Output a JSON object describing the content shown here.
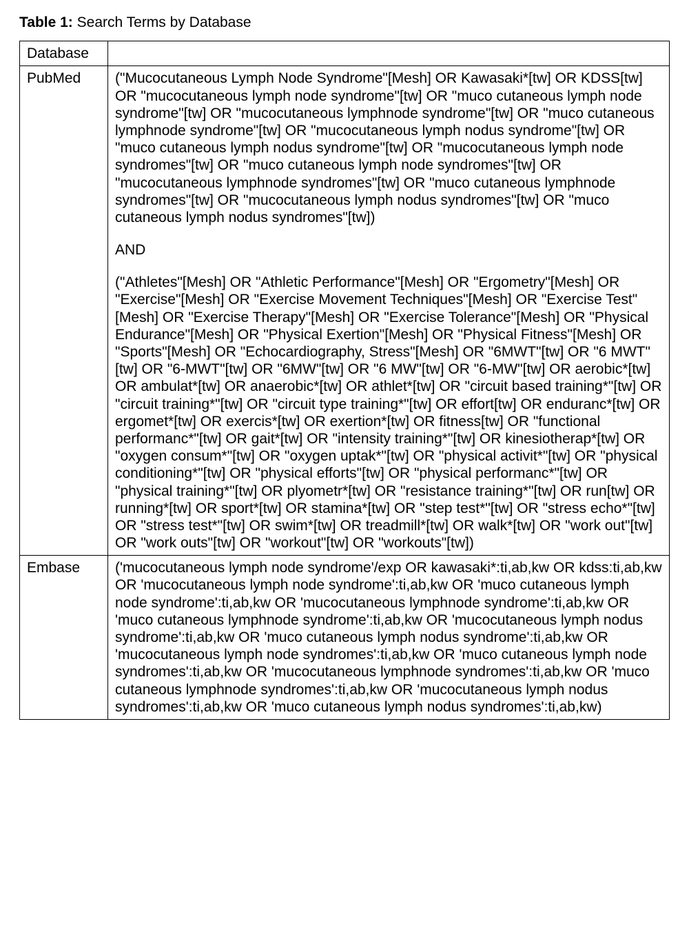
{
  "title": {
    "label": "Table 1:",
    "text": "Search Terms by Database"
  },
  "table": {
    "header": {
      "col1": "Database",
      "col2": ""
    },
    "rows": [
      {
        "database": "PubMed",
        "query_block1": "(\"Mucocutaneous Lymph Node Syndrome\"[Mesh] OR Kawasaki*[tw] OR KDSS[tw] OR \"mucocutaneous lymph node syndrome\"[tw] OR \"muco cutaneous lymph node syndrome\"[tw] OR \"mucocutaneous lymphnode syndrome\"[tw] OR \"muco cutaneous lymphnode syndrome\"[tw] OR \"mucocutaneous lymph nodus syndrome\"[tw] OR \"muco cutaneous lymph nodus syndrome\"[tw] OR \"mucocutaneous lymph node syndromes\"[tw] OR \"muco cutaneous lymph node syndromes\"[tw] OR \"mucocutaneous lymphnode syndromes\"[tw] OR \"muco cutaneous lymphnode syndromes\"[tw] OR \"mucocutaneous lymph nodus syndromes\"[tw] OR \"muco cutaneous lymph nodus syndromes\"[tw])",
        "and_sep": "AND",
        "query_block2": "(\"Athletes\"[Mesh] OR \"Athletic Performance\"[Mesh] OR \"Ergometry\"[Mesh] OR \"Exercise\"[Mesh] OR \"Exercise Movement Techniques\"[Mesh] OR \"Exercise Test\"[Mesh] OR \"Exercise Therapy\"[Mesh] OR \"Exercise Tolerance\"[Mesh] OR \"Physical Endurance\"[Mesh] OR \"Physical Exertion\"[Mesh] OR \"Physical Fitness\"[Mesh] OR \"Sports\"[Mesh] OR \"Echocardiography, Stress\"[Mesh] OR \"6MWT\"[tw] OR \"6 MWT\"[tw] OR \"6-MWT\"[tw] OR \"6MW\"[tw] OR \"6 MW\"[tw] OR \"6-MW\"[tw] OR aerobic*[tw] OR ambulat*[tw] OR anaerobic*[tw] OR athlet*[tw] OR \"circuit based training*\"[tw] OR \"circuit training*\"[tw] OR \"circuit type training*\"[tw] OR effort[tw] OR enduranc*[tw] OR ergomet*[tw] OR exercis*[tw] OR exertion*[tw] OR fitness[tw] OR \"functional performanc*\"[tw] OR gait*[tw] OR \"intensity training*\"[tw] OR kinesiotherap*[tw] OR \"oxygen consum*\"[tw] OR \"oxygen uptak*\"[tw] OR \"physical activit*\"[tw] OR \"physical conditioning*\"[tw] OR \"physical efforts\"[tw] OR \"physical performanc*\"[tw] OR \"physical training*\"[tw] OR plyometr*[tw] OR \"resistance training*\"[tw] OR run[tw] OR running*[tw] OR sport*[tw] OR stamina*[tw] OR \"step test*\"[tw] OR \"stress echo*\"[tw] OR \"stress test*\"[tw] OR swim*[tw] OR treadmill*[tw] OR walk*[tw] OR \"work out\"[tw] OR \"work outs\"[tw] OR \"workout\"[tw] OR \"workouts\"[tw])"
      },
      {
        "database": "Embase",
        "query_block1": "('mucocutaneous lymph node syndrome'/exp OR kawasaki*:ti,ab,kw OR kdss:ti,ab,kw OR 'mucocutaneous lymph node syndrome':ti,ab,kw OR 'muco cutaneous lymph node syndrome':ti,ab,kw OR 'mucocutaneous lymphnode syndrome':ti,ab,kw OR 'muco cutaneous lymphnode syndrome':ti,ab,kw OR 'mucocutaneous lymph nodus syndrome':ti,ab,kw OR 'muco cutaneous lymph nodus syndrome':ti,ab,kw OR 'mucocutaneous lymph node syndromes':ti,ab,kw OR 'muco cutaneous lymph node syndromes':ti,ab,kw OR 'mucocutaneous lymphnode syndromes':ti,ab,kw OR 'muco cutaneous lymphnode syndromes':ti,ab,kw OR 'mucocutaneous lymph nodus syndromes':ti,ab,kw OR 'muco cutaneous lymph nodus syndromes':ti,ab,kw)"
      }
    ]
  }
}
